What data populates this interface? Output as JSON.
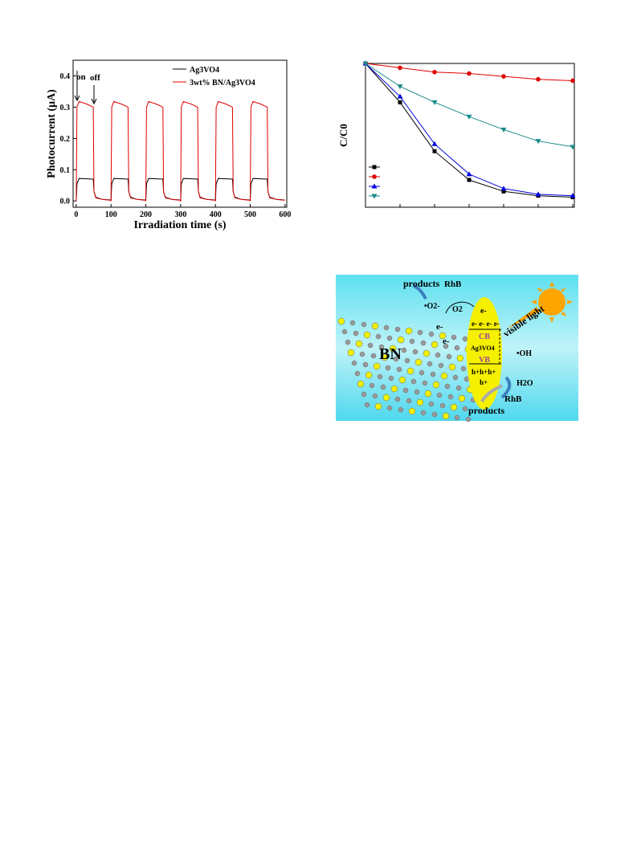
{
  "chart_data": [
    {
      "type": "line",
      "ylabel": "Photocurrent (μA)",
      "xlabel": "Irradiation time (s)",
      "x": [
        0,
        2,
        8,
        30,
        49,
        51,
        56,
        75,
        99,
        100,
        102,
        108,
        130,
        149,
        151,
        156,
        175,
        199,
        200,
        202,
        208,
        230,
        249,
        251,
        256,
        275,
        299,
        300,
        302,
        308,
        330,
        349,
        351,
        356,
        375,
        399,
        400,
        402,
        408,
        430,
        449,
        451,
        456,
        475,
        499,
        500,
        502,
        508,
        530,
        549,
        551,
        556,
        575,
        599
      ],
      "series": [
        {
          "name": "Ag3VO4",
          "color": "#000000",
          "values": [
            0.0,
            0.055,
            0.072,
            0.071,
            0.07,
            0.03,
            0.012,
            0.005,
            0.003,
            0.0,
            0.055,
            0.072,
            0.071,
            0.07,
            0.03,
            0.012,
            0.005,
            0.003,
            0.0,
            0.055,
            0.072,
            0.071,
            0.07,
            0.03,
            0.012,
            0.005,
            0.003,
            0.0,
            0.055,
            0.072,
            0.071,
            0.07,
            0.03,
            0.012,
            0.005,
            0.003,
            0.0,
            0.055,
            0.072,
            0.071,
            0.07,
            0.03,
            0.012,
            0.005,
            0.003,
            0.0,
            0.055,
            0.072,
            0.071,
            0.07,
            0.03,
            0.012,
            0.005,
            0.003
          ]
        },
        {
          "name": "3wt% BN/Ag3VO4",
          "color": "#e00000",
          "values": [
            0.0,
            0.3,
            0.318,
            0.31,
            0.3,
            0.03,
            0.01,
            0.005,
            0.002,
            0.0,
            0.3,
            0.318,
            0.31,
            0.3,
            0.03,
            0.01,
            0.005,
            0.002,
            0.0,
            0.3,
            0.318,
            0.31,
            0.3,
            0.03,
            0.01,
            0.005,
            0.002,
            0.0,
            0.3,
            0.318,
            0.31,
            0.3,
            0.03,
            0.01,
            0.005,
            0.002,
            0.0,
            0.3,
            0.318,
            0.31,
            0.3,
            0.03,
            0.01,
            0.005,
            0.002,
            0.0,
            0.3,
            0.318,
            0.31,
            0.3,
            0.03,
            0.01,
            0.005,
            0.002
          ]
        }
      ],
      "xlim": [
        -9,
        605
      ],
      "xticks": [
        0,
        100,
        200,
        300,
        400,
        500,
        600
      ],
      "ylim": [
        -0.02,
        0.45
      ],
      "yticks": [
        {
          "value": 0,
          "label": "0.0"
        },
        0.1,
        0.2,
        0.3,
        0.4
      ],
      "annotations": [
        "on",
        "off"
      ]
    },
    {
      "type": "line",
      "ylabel": "C/C0",
      "categories": [
        null,
        null,
        null,
        null,
        null,
        null,
        null
      ],
      "ylim": [
        0,
        1
      ],
      "series": [
        {
          "color": "#000000",
          "marker": "square",
          "values": [
            1,
            0.73,
            0.39,
            0.19,
            0.11,
            0.08,
            0.07
          ]
        },
        {
          "color": "#e00000",
          "marker": "circle",
          "values": [
            1,
            0.97,
            0.94,
            0.93,
            0.91,
            0.89,
            0.88
          ]
        },
        {
          "color": "#0000e0",
          "marker": "triangle",
          "values": [
            1,
            0.77,
            0.44,
            0.23,
            0.13,
            0.09,
            0.08
          ]
        },
        {
          "color": "#1a8a8a",
          "marker": "triangle-down",
          "values": [
            1,
            0.84,
            0.73,
            0.63,
            0.54,
            0.46,
            0.42
          ]
        }
      ]
    }
  ],
  "diagram": {
    "labels": {
      "products_top": "products",
      "rhb_top": "RhB",
      "o2_radical": "•O2-",
      "o2": "O2",
      "e1": "e-",
      "e2": "e-",
      "e3": "e-",
      "e_row": "e- e- e- e-",
      "cb": "CB",
      "material": "Ag3VO4",
      "vb": "VB",
      "h_row": "h+h+h+",
      "h_single": "h+",
      "oh": "•OH",
      "h2o": "H2O",
      "rhb_bottom": "RhB",
      "products_bottom": "products",
      "bn": "BN",
      "visible_light": "visible light"
    }
  }
}
